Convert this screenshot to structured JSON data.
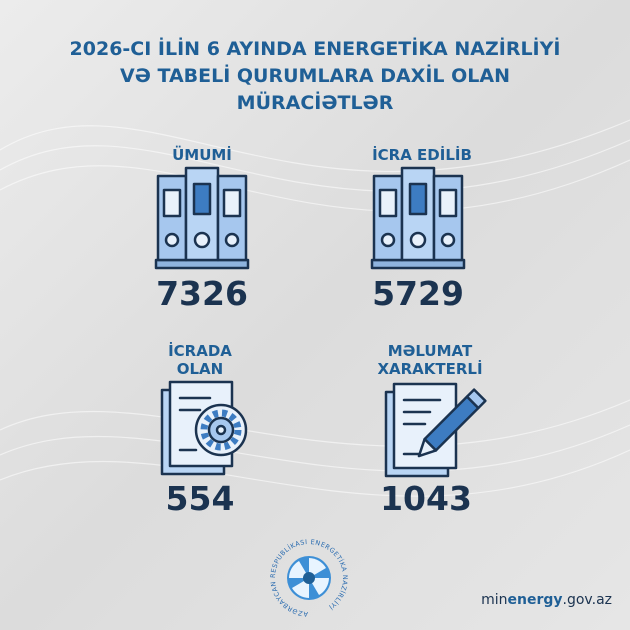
{
  "title": [
    "2026-CI İLİN 6 AYINDA ENERGETİKA NAZİRLİYİ",
    "VƏ TABELİ QURUMLARA DAXİL OLAN",
    "MÜRACİƏTLƏR"
  ],
  "items": [
    {
      "label": [
        "ÜMUMİ"
      ],
      "value": 7326
    },
    {
      "label": [
        "İCRA EDİLİB"
      ],
      "value": 5729
    },
    {
      "label": [
        "İCRADA",
        "OLAN"
      ],
      "value": 554
    },
    {
      "label": [
        "MƏLUMAT",
        "XARAKTERLİ"
      ],
      "value": 1043
    }
  ],
  "footer": {
    "logo_text": "AZƏRBAYCAN RESPUBLİKASI ENERGETİKA NAZİRLİYİ",
    "website": [
      "min",
      "energy",
      ".gov.az"
    ]
  }
}
